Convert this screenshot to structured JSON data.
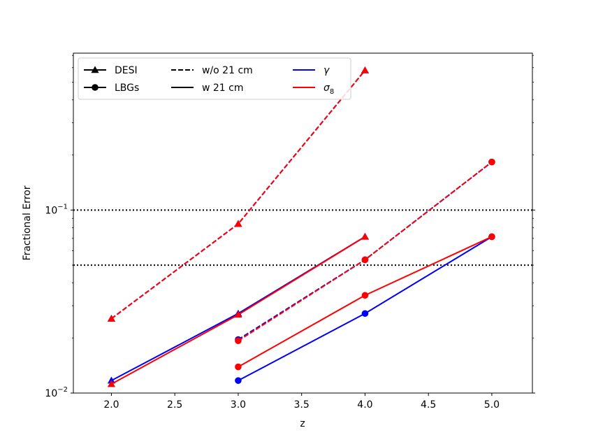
{
  "chart_data": {
    "type": "line",
    "title": "",
    "xlabel": "z",
    "ylabel": "Fractional Error",
    "xlim": [
      1.7,
      5.32
    ],
    "ylim": [
      0.01,
      0.72
    ],
    "yscale": "log",
    "xticks": [
      2.0,
      2.5,
      3.0,
      3.5,
      4.0,
      4.5,
      5.0
    ],
    "xtick_labels": [
      "2.0",
      "2.5",
      "3.0",
      "3.5",
      "4.0",
      "4.5",
      "5.0"
    ],
    "ytick_labels": [
      {
        "value": 0.01,
        "base": "10",
        "exp": "−2"
      },
      {
        "value": 0.1,
        "base": "10",
        "exp": "−1"
      }
    ],
    "grid": false,
    "reference_lines": [
      {
        "y": 0.1,
        "style": "dotted",
        "color": "#000000"
      },
      {
        "y": 0.05,
        "style": "dotted",
        "color": "#000000"
      }
    ],
    "series": [
      {
        "survey": "DESI",
        "parameter": "gamma",
        "with_21cm": false,
        "color": "#0000ff",
        "dash": "dashed",
        "marker": "triangle",
        "x": [
          2.0,
          3.0,
          4.0
        ],
        "y": [
          0.0255,
          0.084,
          0.58
        ]
      },
      {
        "survey": "DESI",
        "parameter": "sigma8",
        "with_21cm": false,
        "color": "#ff0000",
        "dash": "dashed",
        "marker": "triangle",
        "x": [
          2.0,
          3.0,
          4.0
        ],
        "y": [
          0.0255,
          0.084,
          0.58
        ]
      },
      {
        "survey": "DESI",
        "parameter": "gamma",
        "with_21cm": true,
        "color": "#0000ff",
        "dash": "solid",
        "marker": "triangle",
        "x": [
          2.0,
          3.0,
          4.0
        ],
        "y": [
          0.0117,
          0.0272,
          0.0715
        ]
      },
      {
        "survey": "DESI",
        "parameter": "sigma8",
        "with_21cm": true,
        "color": "#ff0000",
        "dash": "solid",
        "marker": "triangle",
        "x": [
          2.0,
          3.0,
          4.0
        ],
        "y": [
          0.0112,
          0.0268,
          0.0715
        ]
      },
      {
        "survey": "LBGs",
        "parameter": "gamma",
        "with_21cm": false,
        "color": "#0000ff",
        "dash": "dashed",
        "marker": "circle",
        "x": [
          3.0,
          4.0,
          5.0
        ],
        "y": [
          0.0196,
          0.0535,
          0.183
        ]
      },
      {
        "survey": "LBGs",
        "parameter": "sigma8",
        "with_21cm": false,
        "color": "#ff0000",
        "dash": "dashed",
        "marker": "circle",
        "x": [
          3.0,
          4.0,
          5.0
        ],
        "y": [
          0.0193,
          0.0535,
          0.183
        ]
      },
      {
        "survey": "LBGs",
        "parameter": "gamma",
        "with_21cm": true,
        "color": "#0000ff",
        "dash": "solid",
        "marker": "circle",
        "x": [
          3.0,
          4.0,
          5.0
        ],
        "y": [
          0.0117,
          0.0272,
          0.0715
        ]
      },
      {
        "survey": "LBGs",
        "parameter": "sigma8",
        "with_21cm": true,
        "color": "#ff0000",
        "dash": "solid",
        "marker": "circle",
        "x": [
          3.0,
          4.0,
          5.0
        ],
        "y": [
          0.0139,
          0.0342,
          0.0715
        ]
      }
    ],
    "legend": {
      "placement": "top-left",
      "entries": [
        {
          "label": "DESI",
          "kind": "marker",
          "marker": "triangle",
          "color": "#000000"
        },
        {
          "label": "LBGs",
          "kind": "marker",
          "marker": "circle",
          "color": "#000000"
        },
        {
          "label": "w/o 21 cm",
          "kind": "line",
          "dash": "dashed",
          "color": "#000000"
        },
        {
          "label": "w 21 cm",
          "kind": "line",
          "dash": "solid",
          "color": "#000000"
        },
        {
          "label": "γ",
          "kind": "line",
          "dash": "solid",
          "color": "#0000ff"
        },
        {
          "label": "σ",
          "sub": "8",
          "kind": "line",
          "dash": "solid",
          "color": "#ff0000"
        }
      ]
    }
  }
}
